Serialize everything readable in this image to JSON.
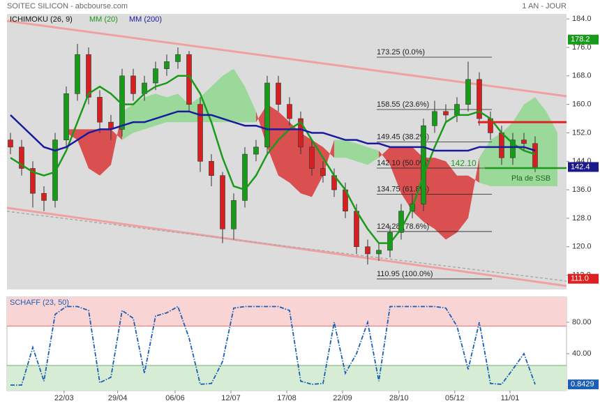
{
  "chart_data": [
    {
      "type": "candlestick",
      "title": "SOITEC SILICON - abcbourse.com",
      "subtitle": "1 AN - JOUR",
      "ichimoku_label": "ICHIMOKU (26, 9)",
      "open": [
        150,
        148,
        142,
        135,
        133,
        150,
        163,
        174,
        162,
        155,
        153,
        168,
        163,
        166,
        170,
        172,
        174,
        160,
        144,
        140,
        125,
        133,
        146,
        148,
        166,
        160,
        156,
        148,
        142,
        140,
        136,
        130,
        120,
        118,
        119,
        124,
        130,
        132,
        154,
        158,
        157,
        160,
        167,
        156,
        152,
        145,
        150,
        149
      ],
      "high": [
        152,
        150,
        144,
        137,
        152,
        165,
        177,
        176,
        164,
        157,
        170,
        170,
        168,
        172,
        174,
        176,
        175,
        162,
        146,
        141,
        135,
        148,
        150,
        168,
        168,
        162,
        158,
        150,
        144,
        142,
        138,
        132,
        122,
        121,
        126,
        132,
        135,
        156,
        161,
        160,
        162,
        172,
        169,
        158,
        154,
        152,
        152,
        151
      ],
      "low": [
        146,
        140,
        131,
        130,
        131,
        148,
        161,
        160,
        152,
        150,
        151,
        161,
        161,
        164,
        168,
        170,
        158,
        141,
        137,
        121,
        122,
        131,
        144,
        146,
        158,
        154,
        146,
        140,
        138,
        134,
        128,
        118,
        115,
        116,
        117,
        122,
        128,
        130,
        152,
        155,
        155,
        158,
        154,
        150,
        143,
        143,
        147,
        141
      ],
      "close": [
        148,
        142,
        135,
        133,
        150,
        163,
        174,
        162,
        155,
        153,
        168,
        163,
        166,
        170,
        172,
        174,
        160,
        144,
        140,
        125,
        133,
        146,
        148,
        166,
        160,
        156,
        148,
        142,
        140,
        136,
        130,
        120,
        118,
        119,
        124,
        130,
        132,
        154,
        158,
        157,
        160,
        167,
        156,
        152,
        145,
        150,
        149,
        142.4
      ],
      "up_color": "#1a9a1a",
      "down_color": "#d42020",
      "series": [
        {
          "name": "MM (20)",
          "color": "#1a9a1a",
          "values": [
            145,
            143,
            141,
            140,
            141,
            147,
            155,
            163,
            165,
            163,
            160,
            160,
            163,
            165,
            166,
            168,
            168,
            163,
            155,
            145,
            137,
            136,
            140,
            146,
            150,
            153,
            155,
            150,
            145,
            140,
            136,
            130,
            125,
            121,
            121,
            125,
            131,
            140,
            148,
            155,
            157,
            157,
            158,
            156,
            152,
            149,
            147,
            146
          ]
        },
        {
          "name": "MM (200)",
          "color": "#1a1aa0",
          "values": [
            157,
            154,
            151,
            148,
            147,
            148,
            150,
            152,
            153,
            153,
            154,
            155,
            155,
            156,
            157,
            158,
            158,
            157,
            157,
            156,
            155,
            154,
            154,
            153,
            153,
            153,
            153,
            152,
            152,
            151,
            150,
            150,
            149,
            149,
            148,
            148,
            148,
            148,
            147,
            147,
            147,
            147,
            148,
            148,
            148,
            148,
            148,
            147
          ]
        }
      ],
      "cloud": {
        "up_color": "#8fd88f",
        "down_color": "#d94040",
        "span_a": [
          null,
          null,
          null,
          null,
          null,
          152,
          150,
          142,
          140,
          143,
          158,
          160,
          162,
          163,
          162,
          163,
          160,
          162,
          165,
          168,
          170,
          165,
          158,
          148,
          140,
          138,
          135,
          134,
          140,
          150,
          150,
          149,
          148,
          147,
          143,
          135,
          130,
          127,
          125,
          122,
          124,
          128,
          145,
          150,
          152,
          155,
          160,
          162,
          158,
          152
        ],
        "span_b": [
          null,
          null,
          null,
          null,
          null,
          153,
          153,
          153,
          153,
          153,
          150,
          152,
          153,
          154,
          155,
          155,
          155,
          155,
          155,
          155,
          155,
          155,
          155,
          160,
          158,
          155,
          152,
          150,
          148,
          145,
          145,
          144,
          143,
          145,
          148,
          148,
          148,
          145,
          145,
          144,
          140,
          140,
          138,
          137,
          137,
          137,
          137,
          137,
          137,
          137
        ]
      },
      "ylim": [
        108,
        185.4
      ],
      "yticks": [
        {
          "value": 184,
          "label": "184.0"
        },
        {
          "value": 176,
          "label": "176.0"
        },
        {
          "value": 168,
          "label": "168.0"
        },
        {
          "value": 160,
          "label": "160.0"
        },
        {
          "value": 152,
          "label": "152.0"
        },
        {
          "value": 144,
          "label": "144.0"
        },
        {
          "value": 136,
          "label": "136.0"
        },
        {
          "value": 128,
          "label": "128.0"
        },
        {
          "value": 120,
          "label": "120.0"
        },
        {
          "value": 112,
          "label": "112.0"
        }
      ],
      "xticks": [
        {
          "value": 4.8,
          "label": "22/03"
        },
        {
          "value": 9.6,
          "label": "29/04"
        },
        {
          "value": 14.75,
          "label": "06/06"
        },
        {
          "value": 19.75,
          "label": "12/07"
        },
        {
          "value": 24.75,
          "label": "17/08"
        },
        {
          "value": 29.75,
          "label": "22/09"
        },
        {
          "value": 34.8,
          "label": "28/10"
        },
        {
          "value": 39.8,
          "label": "05/12"
        },
        {
          "value": 44.75,
          "label": "11/01"
        }
      ],
      "fibonacci": [
        {
          "value": 173.25,
          "label": "173.25 (0.0%)"
        },
        {
          "value": 158.55,
          "label": "158.55 (23.6%)"
        },
        {
          "value": 149.45,
          "label": "149.45 (38.2%)"
        },
        {
          "value": 142.1,
          "label": "142.10 (50.0%)"
        },
        {
          "value": 134.75,
          "label": "134.75 (61.8%)"
        },
        {
          "value": 124.28,
          "label": "124.28 (78.6%)"
        },
        {
          "value": 110.95,
          "label": "110.95 (100.0%)"
        }
      ],
      "levels": [
        {
          "value": 155,
          "color": "#e02020"
        },
        {
          "value": 142.1,
          "label": "142.10",
          "color": "#1a9a1a"
        }
      ],
      "annotation": "Pla de SSB",
      "price_markers": [
        {
          "value": 178.2,
          "color": "#1a9a1a"
        },
        {
          "value": 142.4,
          "color": "#1a1a8a"
        },
        {
          "value": 111,
          "label": "111.0",
          "color": "#e02020"
        }
      ]
    },
    {
      "type": "line",
      "title": "SCHAFF (23, 50)",
      "color": "#1a5fb4",
      "values": [
        0,
        0,
        48,
        5,
        90,
        100,
        100,
        95,
        3,
        10,
        95,
        85,
        15,
        88,
        92,
        100,
        60,
        1,
        2,
        30,
        98,
        100,
        100,
        100,
        100,
        95,
        5,
        1,
        2,
        80,
        15,
        40,
        80,
        5,
        100,
        100,
        100,
        100,
        100,
        98,
        75,
        20,
        80,
        2,
        1,
        20,
        40,
        0.8429
      ],
      "ylim": [
        -7,
        112
      ],
      "yticks": [
        {
          "value": 80,
          "label": "80.00"
        },
        {
          "value": 40,
          "label": "40.00"
        }
      ],
      "overbought": 75,
      "oversold": 25,
      "overbought_color": "#f9d4d4",
      "oversold_color": "#d6ecd4",
      "marker": 0.8429,
      "marker_color": "#1a5fb4"
    }
  ]
}
